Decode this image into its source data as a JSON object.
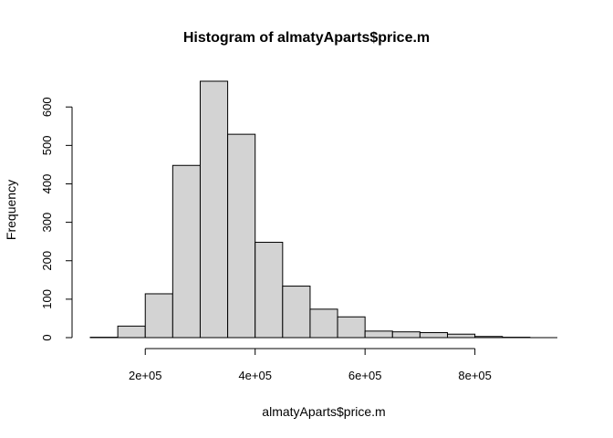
{
  "chart_data": {
    "type": "bar",
    "title": "Histogram of almatyAparts$price.m",
    "xlabel": "almatyAparts$price.m",
    "ylabel": "Frequency",
    "bin_width": 50000,
    "bins": [
      {
        "start": 100000,
        "end": 150000,
        "count": 1
      },
      {
        "start": 150000,
        "end": 200000,
        "count": 30
      },
      {
        "start": 200000,
        "end": 250000,
        "count": 114
      },
      {
        "start": 250000,
        "end": 300000,
        "count": 448
      },
      {
        "start": 300000,
        "end": 350000,
        "count": 667
      },
      {
        "start": 350000,
        "end": 400000,
        "count": 529
      },
      {
        "start": 400000,
        "end": 450000,
        "count": 248
      },
      {
        "start": 450000,
        "end": 500000,
        "count": 134
      },
      {
        "start": 500000,
        "end": 550000,
        "count": 74
      },
      {
        "start": 550000,
        "end": 600000,
        "count": 54
      },
      {
        "start": 600000,
        "end": 650000,
        "count": 17
      },
      {
        "start": 650000,
        "end": 700000,
        "count": 15
      },
      {
        "start": 700000,
        "end": 750000,
        "count": 13
      },
      {
        "start": 750000,
        "end": 800000,
        "count": 9
      },
      {
        "start": 800000,
        "end": 850000,
        "count": 3
      },
      {
        "start": 850000,
        "end": 900000,
        "count": 1
      },
      {
        "start": 900000,
        "end": 950000,
        "count": 0
      }
    ],
    "x_ticks": [
      {
        "value": 200000,
        "label": "2e+05"
      },
      {
        "value": 400000,
        "label": "4e+05"
      },
      {
        "value": 600000,
        "label": "6e+05"
      },
      {
        "value": 800000,
        "label": "8e+05"
      }
    ],
    "y_ticks": [
      {
        "value": 0,
        "label": "0"
      },
      {
        "value": 100,
        "label": "100"
      },
      {
        "value": 200,
        "label": "200"
      },
      {
        "value": 300,
        "label": "300"
      },
      {
        "value": 400,
        "label": "400"
      },
      {
        "value": 500,
        "label": "500"
      },
      {
        "value": 600,
        "label": "600"
      }
    ],
    "xlim": [
      100000,
      950000
    ],
    "ylim": [
      0,
      667
    ],
    "bar_fill": "#d3d3d3",
    "bar_stroke": "#000000",
    "grid": false,
    "legend": "none"
  }
}
